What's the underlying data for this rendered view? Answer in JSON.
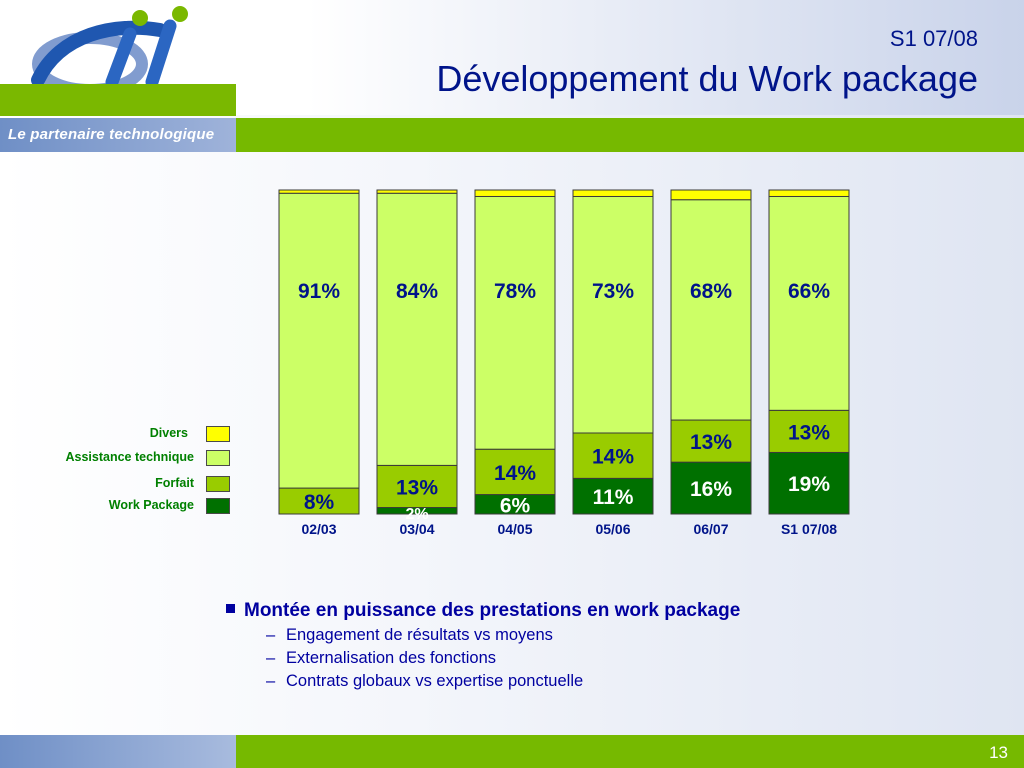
{
  "header": {
    "period": "S1 07/08",
    "title": "Développement du Work package",
    "tagline": "Le partenaire technologique"
  },
  "footer": {
    "page_number": "13"
  },
  "colors": {
    "divers": "#ffff00",
    "assistance_technique": "#ccff66",
    "forfait": "#99cc00",
    "work_package": "#007000",
    "title_blue": "#00148a",
    "band_green": "#76b900"
  },
  "chart_data": {
    "type": "bar",
    "stacked": true,
    "categories": [
      "02/03",
      "03/04",
      "04/05",
      "05/06",
      "06/07",
      "S1 07/08"
    ],
    "series": [
      {
        "name": "Work Package",
        "values": [
          0,
          2,
          6,
          11,
          16,
          19
        ],
        "labels": [
          "",
          "2%",
          "6%",
          "11%",
          "16%",
          "19%"
        ]
      },
      {
        "name": "Forfait",
        "values": [
          8,
          13,
          14,
          14,
          13,
          13
        ],
        "labels": [
          "8%",
          "13%",
          "14%",
          "14%",
          "13%",
          "13%"
        ]
      },
      {
        "name": "Assistance technique",
        "values": [
          91,
          84,
          78,
          73,
          68,
          66
        ],
        "labels": [
          "91%",
          "84%",
          "78%",
          "73%",
          "68%",
          "66%"
        ]
      },
      {
        "name": "Divers",
        "values": [
          1,
          1,
          2,
          2,
          3,
          2
        ],
        "labels": [
          "",
          "",
          "",
          "",
          "",
          ""
        ]
      }
    ],
    "legend": [
      "Divers",
      "Assistance technique",
      "Forfait",
      "Work Package"
    ],
    "legend_position": "left",
    "ylim": [
      0,
      100
    ],
    "grid": false
  },
  "bullets": {
    "main": "Montée en puissance des prestations en work package",
    "sub": [
      "Engagement de résultats vs moyens",
      "Externalisation des fonctions",
      "Contrats globaux vs expertise ponctuelle"
    ]
  }
}
